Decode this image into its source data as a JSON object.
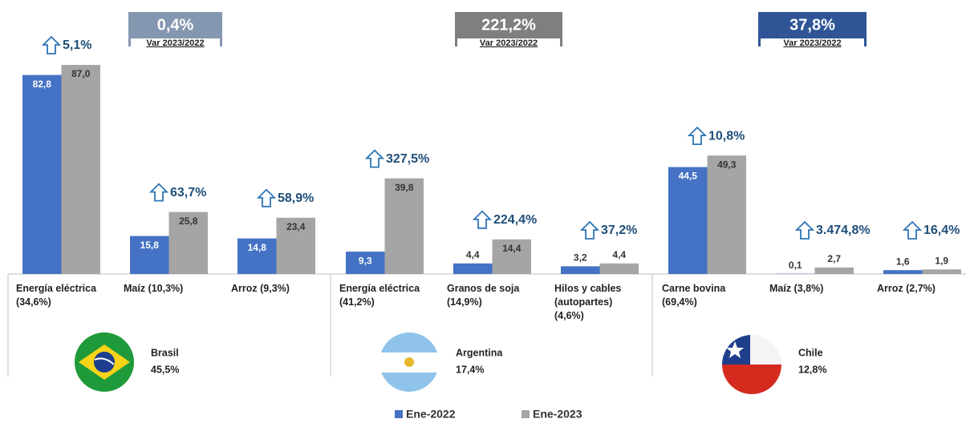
{
  "chart_data": {
    "type": "bar",
    "categories": [
      "Energía eléctrica\n(34,6%)",
      "Maíz  (10,3%)",
      "Arroz  (9,3%)",
      "Energía eléctrica\n(41,2%)",
      "Granos de soja\n(14,9%)",
      "Hilos y cables\n(autopartes)\n(4,6%)",
      "Carne bovina\n(69,4%)",
      "Maíz (3,8%)",
      "Arroz (2,7%)"
    ],
    "series": [
      {
        "name": "Ene-2022",
        "color": "#4472c4",
        "values": [
          82.8,
          15.8,
          14.8,
          9.3,
          4.4,
          3.2,
          44.5,
          0.1,
          1.6
        ],
        "value_labels": [
          "82,8",
          "15,8",
          "14,8",
          "9,3",
          "4,4",
          "3,2",
          "44,5",
          "0,1",
          "1,6"
        ]
      },
      {
        "name": "Ene-2023",
        "color": "#a5a5a5",
        "values": [
          87.0,
          25.8,
          23.4,
          39.8,
          14.4,
          4.4,
          49.3,
          2.7,
          1.9
        ],
        "value_labels": [
          "87,0",
          "25,8",
          "23,4",
          "39,8",
          "14,4",
          "4,4",
          "49,3",
          "2,7",
          "1,9"
        ]
      }
    ],
    "growth_labels": [
      "5,1%",
      "63,7%",
      "58,9%",
      "327,5%",
      "224,4%",
      "37,2%",
      "10,8%",
      "3.474,8%",
      "16,4%"
    ],
    "groups": [
      {
        "country": "Brasil",
        "share": "45,5%",
        "change": "0,4%",
        "caption": "Var 2023/2022",
        "color": "#8497b0"
      },
      {
        "country": "Argentina",
        "share": "17,4%",
        "change": "221,2%",
        "caption": "Var 2023/2022",
        "color": "#7f7f7f"
      },
      {
        "country": "Chile",
        "share": "12,8%",
        "change": "37,8%",
        "caption": "Var 2023/2022",
        "color": "#2f5597"
      }
    ],
    "ylim": [
      0,
      90
    ]
  }
}
